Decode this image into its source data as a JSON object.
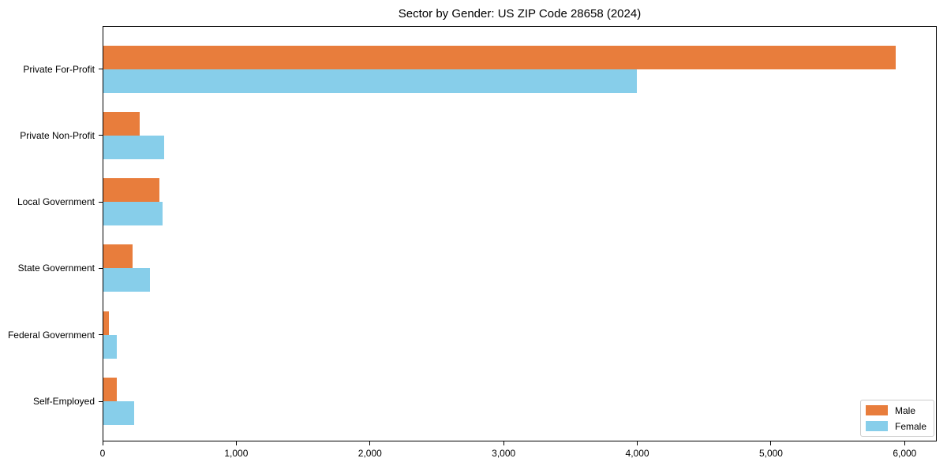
{
  "chart_data": {
    "type": "bar",
    "orientation": "horizontal",
    "title": "Sector by Gender: US ZIP Code 28658 (2024)",
    "categories": [
      "Private For-Profit",
      "Private Non-Profit",
      "Local Government",
      "State Government",
      "Federal Government",
      "Self-Employed"
    ],
    "series": [
      {
        "name": "Male",
        "color": "#e87d3c",
        "values": [
          5930,
          270,
          420,
          220,
          40,
          100
        ]
      },
      {
        "name": "Female",
        "color": "#87ceea",
        "values": [
          3990,
          455,
          445,
          350,
          100,
          230
        ]
      }
    ],
    "xlim": [
      0,
      6240
    ],
    "xticks": [
      0,
      1000,
      2000,
      3000,
      4000,
      5000,
      6000
    ],
    "xtick_labels": [
      "0",
      "1,000",
      "2,000",
      "3,000",
      "4,000",
      "5,000",
      "6,000"
    ],
    "xlabel": "",
    "ylabel": "",
    "grid": false,
    "legend_position": "lower right",
    "axis_color": "#000000",
    "background_color": "#ffffff"
  }
}
